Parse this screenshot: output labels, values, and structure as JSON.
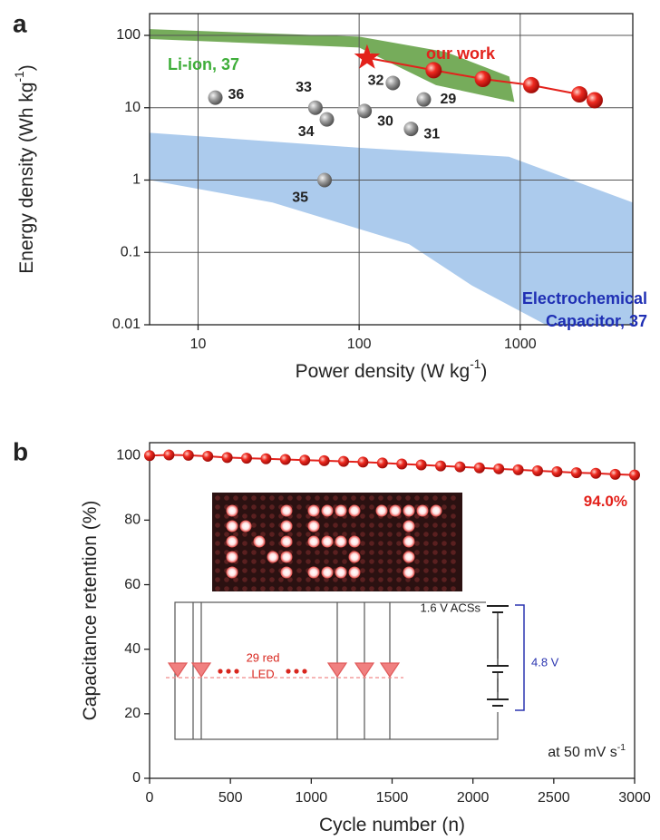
{
  "chart_data": [
    {
      "type": "scatter",
      "panel_label": "a",
      "xscale": "log",
      "yscale": "log",
      "xlim": [
        5,
        5000
      ],
      "ylim": [
        0.01,
        200
      ],
      "xticks": [
        10,
        100,
        1000
      ],
      "yticks": [
        0.01,
        0.1,
        1,
        10,
        100
      ],
      "grid": true,
      "xlabel": {
        "text": "Power density (W kg",
        "sup": "-1",
        "tail": ")"
      },
      "ylabel": {
        "text": "Energy density (Wh kg",
        "sup": "-1",
        "tail": ")"
      },
      "regions": [
        {
          "label": [
            "Li-ion, 37"
          ],
          "color": "#5e9e3e",
          "label_color": "#3fae3a",
          "x": [
            5,
            100,
            345,
            855,
            920,
            300,
            100,
            5
          ],
          "y": [
            122,
            96,
            59,
            27,
            12,
            20.5,
            68,
            89
          ]
        },
        {
          "label": [
            "Electrochemical",
            "Capacitor, 37"
          ],
          "color": "#a8c8ec",
          "label_color": "#1f2fb4",
          "x": [
            5,
            100,
            850,
            5000,
            5000,
            1440,
            500,
            204,
            29,
            5
          ],
          "y": [
            4.5,
            2.8,
            2.1,
            0.49,
            0.01,
            0.01,
            0.035,
            0.13,
            0.49,
            1
          ]
        }
      ],
      "series": [
        {
          "color": "#8a8a8a",
          "labels": [
            "36",
            "33",
            "34",
            "30",
            "32",
            "29",
            "31",
            "35"
          ],
          "x": [
            12.8,
            53.5,
            63,
            108,
            162,
            252,
            210,
            61
          ],
          "y": [
            13.8,
            10,
            6.9,
            9,
            22,
            13,
            5.1,
            1
          ]
        },
        {
          "name": "our work",
          "color": "#e3211b",
          "x": [
            112,
            290,
            586,
            1170,
            2330,
            2900
          ],
          "y": [
            49,
            33,
            25,
            20.5,
            15.3,
            12.7
          ]
        }
      ]
    },
    {
      "type": "line",
      "panel_label": "b",
      "xlim": [
        0,
        3000
      ],
      "ylim": [
        0,
        104
      ],
      "xticks": [
        0,
        500,
        1000,
        1500,
        2000,
        2500,
        3000
      ],
      "yticks": [
        0,
        20,
        40,
        60,
        80,
        100
      ],
      "xlabel": {
        "text": "Cycle number (n)"
      },
      "ylabel": {
        "text": "Capacitance retention (%)"
      },
      "annotation": {
        "text": "at 50 mV s",
        "sup": "-1"
      },
      "series": [
        {
          "color": "#e3211b",
          "x": [
            0,
            120,
            240,
            360,
            480,
            600,
            720,
            840,
            960,
            1080,
            1200,
            1320,
            1440,
            1560,
            1680,
            1800,
            1920,
            2040,
            2160,
            2280,
            2400,
            2520,
            2640,
            2760,
            2880,
            3000
          ],
          "values": [
            100.0,
            100.2,
            100.1,
            99.8,
            99.4,
            99.2,
            99.0,
            98.8,
            98.6,
            98.4,
            98.2,
            98.0,
            97.7,
            97.4,
            97.1,
            96.8,
            96.5,
            96.2,
            95.9,
            95.6,
            95.3,
            95.0,
            94.7,
            94.5,
            94.2,
            94.0
          ],
          "value_labels": [
            null,
            null,
            null,
            null,
            null,
            null,
            null,
            null,
            null,
            null,
            null,
            null,
            null,
            null,
            null,
            null,
            null,
            null,
            null,
            null,
            null,
            null,
            null,
            null,
            null,
            "94.0%"
          ]
        }
      ],
      "inset": {
        "led_label": [
          "29 red",
          "LED"
        ],
        "cell_label": "1.6 V ACSs",
        "total_label": "4.8 V"
      }
    }
  ]
}
